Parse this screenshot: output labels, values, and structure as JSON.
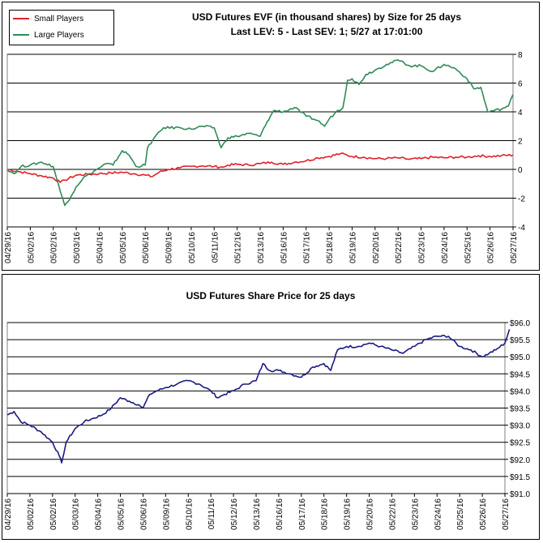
{
  "chart_data": [
    {
      "type": "line",
      "title": "USD Futures EVF (in thousand shares) by Size for 25 days",
      "subtitle": "Last LEV: 5 - Last SEV: 1; 5/27 at 17:01:00",
      "x_tick_labels": [
        "04/29/16",
        "05/02/16",
        "05/02/16",
        "05/03/16",
        "05/04/16",
        "05/05/16",
        "05/06/16",
        "05/09/16",
        "05/10/16",
        "05/11/16",
        "05/12/16",
        "05/13/16",
        "05/16/16",
        "05/17/16",
        "05/18/16",
        "05/19/16",
        "05/20/16",
        "05/22/16",
        "05/23/16",
        "05/24/16",
        "05/25/16",
        "05/26/16",
        "05/27/16"
      ],
      "y_tick_labels": [
        "8",
        "6",
        "4",
        "2",
        "0",
        "-2",
        "-4"
      ],
      "ylim": [
        -4,
        8
      ],
      "grid": true,
      "legend_position": "top-left",
      "x_index_range": [
        0,
        22
      ],
      "series": [
        {
          "name": "Small Players",
          "color": "#e0202a",
          "points": [
            [
              0,
              0
            ],
            [
              0.5,
              -0.15
            ],
            [
              1,
              -0.3
            ],
            [
              1.5,
              -0.45
            ],
            [
              2,
              -0.6
            ],
            [
              2.3,
              -0.9
            ],
            [
              2.5,
              -0.75
            ],
            [
              3,
              -0.4
            ],
            [
              3.5,
              -0.35
            ],
            [
              4,
              -0.3
            ],
            [
              4.5,
              -0.25
            ],
            [
              5,
              -0.2
            ],
            [
              5.5,
              -0.3
            ],
            [
              6,
              -0.4
            ],
            [
              6.3,
              -0.5
            ],
            [
              6.6,
              -0.2
            ],
            [
              7,
              0
            ],
            [
              7.5,
              0.1
            ],
            [
              8,
              0.2
            ],
            [
              8.5,
              0.25
            ],
            [
              9,
              0.2
            ],
            [
              9.4,
              0.15
            ],
            [
              9.6,
              0.3
            ],
            [
              10,
              0.35
            ],
            [
              10.5,
              0.3
            ],
            [
              11,
              0.4
            ],
            [
              11.5,
              0.5
            ],
            [
              12,
              0.35
            ],
            [
              12.5,
              0.5
            ],
            [
              13,
              0.6
            ],
            [
              13.5,
              0.8
            ],
            [
              14,
              0.9
            ],
            [
              14.5,
              1.1
            ],
            [
              15,
              0.9
            ],
            [
              15.5,
              0.85
            ],
            [
              16,
              0.75
            ],
            [
              16.5,
              0.75
            ],
            [
              17,
              0.8
            ],
            [
              17.5,
              0.7
            ],
            [
              18,
              0.75
            ],
            [
              18.5,
              0.85
            ],
            [
              19,
              0.8
            ],
            [
              19.5,
              0.85
            ],
            [
              20,
              0.85
            ],
            [
              20.5,
              0.95
            ],
            [
              21,
              0.9
            ],
            [
              21.5,
              0.95
            ],
            [
              22,
              1.0
            ]
          ]
        },
        {
          "name": "Large Players",
          "color": "#2e8b57",
          "points": [
            [
              0,
              0
            ],
            [
              0.3,
              -0.3
            ],
            [
              0.6,
              0.2
            ],
            [
              1,
              0.3
            ],
            [
              1.5,
              0.5
            ],
            [
              2,
              0.2
            ],
            [
              2.3,
              -1.5
            ],
            [
              2.5,
              -2.5
            ],
            [
              2.8,
              -1.8
            ],
            [
              3,
              -1.2
            ],
            [
              3.3,
              -0.6
            ],
            [
              3.6,
              -0.3
            ],
            [
              4,
              0.1
            ],
            [
              4.3,
              0.4
            ],
            [
              4.6,
              0.3
            ],
            [
              5,
              1.3
            ],
            [
              5.3,
              1.0
            ],
            [
              5.6,
              0.2
            ],
            [
              6,
              0.3
            ],
            [
              6.1,
              1.5
            ],
            [
              6.4,
              2.2
            ],
            [
              6.8,
              2.9
            ],
            [
              7.5,
              2.9
            ],
            [
              8,
              2.8
            ],
            [
              8.5,
              3.0
            ],
            [
              9,
              2.9
            ],
            [
              9.3,
              1.5
            ],
            [
              9.6,
              2.2
            ],
            [
              10,
              2.3
            ],
            [
              10.5,
              2.5
            ],
            [
              11,
              2.3
            ],
            [
              11.3,
              3.3
            ],
            [
              11.6,
              4.1
            ],
            [
              12,
              4.0
            ],
            [
              12.5,
              4.3
            ],
            [
              13,
              3.7
            ],
            [
              13.5,
              3.4
            ],
            [
              13.8,
              3.0
            ],
            [
              14,
              3.5
            ],
            [
              14.3,
              4.0
            ],
            [
              14.6,
              4.3
            ],
            [
              14.8,
              6.2
            ],
            [
              15,
              6.3
            ],
            [
              15.3,
              5.9
            ],
            [
              15.6,
              6.6
            ],
            [
              16,
              6.9
            ],
            [
              16.5,
              7.3
            ],
            [
              17,
              7.6
            ],
            [
              17.5,
              7.2
            ],
            [
              18,
              7.2
            ],
            [
              18.5,
              6.8
            ],
            [
              19,
              7.3
            ],
            [
              19.5,
              7.0
            ],
            [
              20,
              6.3
            ],
            [
              20.3,
              5.6
            ],
            [
              20.6,
              5.7
            ],
            [
              20.9,
              4.0
            ],
            [
              21.2,
              4.1
            ],
            [
              21.5,
              4.2
            ],
            [
              21.8,
              4.4
            ],
            [
              22,
              5.2
            ]
          ]
        }
      ]
    },
    {
      "type": "line",
      "title": "USD Futures Share Price for 25 days",
      "x_tick_labels": [
        "04/29/16",
        "05/02/16",
        "05/02/16",
        "05/03/16",
        "05/04/16",
        "05/05/16",
        "05/06/16",
        "05/09/16",
        "05/10/16",
        "05/11/16",
        "05/12/16",
        "05/13/16",
        "05/16/16",
        "05/17/16",
        "05/18/16",
        "05/19/16",
        "05/20/16",
        "05/22/16",
        "05/23/16",
        "05/24/16",
        "05/25/16",
        "05/26/16",
        "05/27/16"
      ],
      "y_tick_labels": [
        "$96.0",
        "$95.5",
        "$95.0",
        "$94.5",
        "$94.0",
        "$93.5",
        "$93.0",
        "$92.5",
        "$92.0",
        "$91.5",
        "$91.0"
      ],
      "ylim": [
        91,
        96
      ],
      "grid": true,
      "x_index_range": [
        0,
        22
      ],
      "series": [
        {
          "name": "Share Price",
          "color": "#1a1a80",
          "points": [
            [
              0,
              93.3
            ],
            [
              0.3,
              93.4
            ],
            [
              0.6,
              93.1
            ],
            [
              1,
              93.0
            ],
            [
              1.5,
              92.8
            ],
            [
              2,
              92.5
            ],
            [
              2.3,
              92.1
            ],
            [
              2.4,
              91.9
            ],
            [
              2.6,
              92.5
            ],
            [
              3,
              92.9
            ],
            [
              3.4,
              93.1
            ],
            [
              3.8,
              93.2
            ],
            [
              4.2,
              93.3
            ],
            [
              4.6,
              93.5
            ],
            [
              5,
              93.8
            ],
            [
              5.4,
              93.7
            ],
            [
              5.8,
              93.6
            ],
            [
              6,
              93.5
            ],
            [
              6.3,
              93.9
            ],
            [
              6.6,
              94.0
            ],
            [
              7,
              94.1
            ],
            [
              7.5,
              94.2
            ],
            [
              8,
              94.3
            ],
            [
              8.5,
              94.2
            ],
            [
              9,
              94.0
            ],
            [
              9.3,
              93.8
            ],
            [
              9.6,
              93.9
            ],
            [
              10,
              94.0
            ],
            [
              10.5,
              94.2
            ],
            [
              11,
              94.3
            ],
            [
              11.3,
              94.8
            ],
            [
              11.6,
              94.6
            ],
            [
              12,
              94.6
            ],
            [
              12.5,
              94.5
            ],
            [
              13,
              94.4
            ],
            [
              13.5,
              94.7
            ],
            [
              14,
              94.8
            ],
            [
              14.3,
              94.6
            ],
            [
              14.6,
              95.2
            ],
            [
              15,
              95.3
            ],
            [
              15.5,
              95.3
            ],
            [
              16,
              95.4
            ],
            [
              16.5,
              95.3
            ],
            [
              17,
              95.2
            ],
            [
              17.5,
              95.1
            ],
            [
              18,
              95.3
            ],
            [
              18.5,
              95.5
            ],
            [
              19,
              95.6
            ],
            [
              19.5,
              95.6
            ],
            [
              20,
              95.3
            ],
            [
              20.5,
              95.2
            ],
            [
              21,
              95.0
            ],
            [
              21.3,
              95.1
            ],
            [
              21.6,
              95.2
            ],
            [
              22,
              95.4
            ],
            [
              22.2,
              95.8
            ]
          ]
        }
      ]
    }
  ]
}
